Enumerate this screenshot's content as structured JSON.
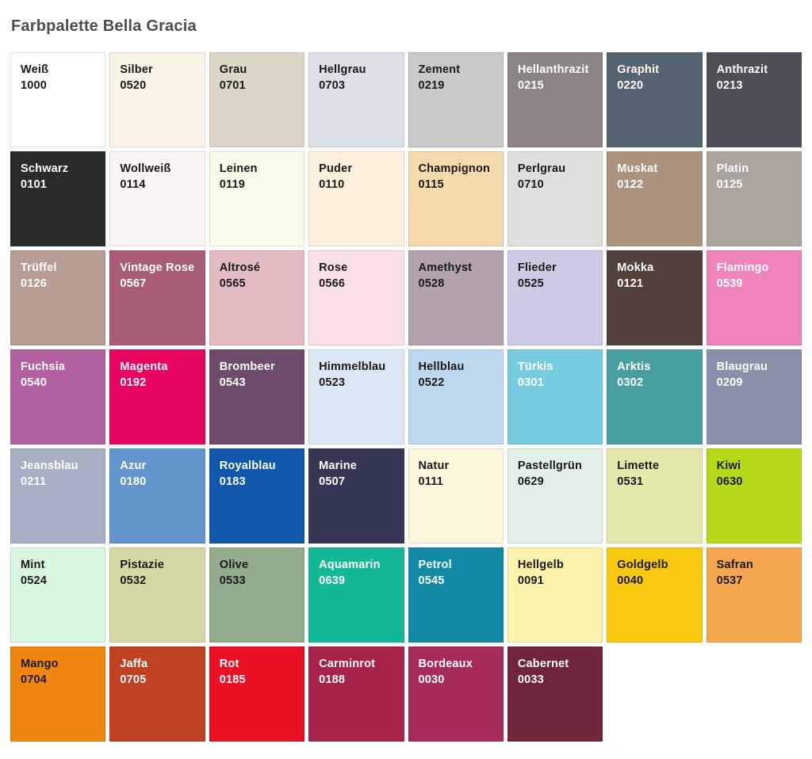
{
  "title": "Farbpalette Bella Gracia",
  "chart_data": {
    "type": "table",
    "title": "Farbpalette Bella Gracia",
    "columns": 8,
    "rows": 7,
    "legend_position": "none",
    "swatches": [
      {
        "name": "Weiß",
        "code": "1000",
        "color": "#ffffff",
        "text_color": "#1a1a1a"
      },
      {
        "name": "Silber",
        "code": "0520",
        "color": "#f8f3e5",
        "text_color": "#1a1a1a"
      },
      {
        "name": "Grau",
        "code": "0701",
        "color": "#dcd6c8",
        "text_color": "#1a1a1a"
      },
      {
        "name": "Hellgrau",
        "code": "0703",
        "color": "#dce1e8",
        "text_color": "#1a1a1a"
      },
      {
        "name": "Zement",
        "code": "0219",
        "color": "#c7cac6",
        "text_color": "#1a1a1a"
      },
      {
        "name": "Hellanthrazit",
        "code": "0215",
        "color": "#8b8386",
        "text_color": "#ffffff"
      },
      {
        "name": "Graphit",
        "code": "0220",
        "color": "#566370",
        "text_color": "#ffffff"
      },
      {
        "name": "Anthrazit",
        "code": "0213",
        "color": "#514d56",
        "text_color": "#ffffff"
      },
      {
        "name": "Schwarz",
        "code": "0101",
        "color": "#272d29",
        "text_color": "#ffffff"
      },
      {
        "name": "Wollweiß",
        "code": "0114",
        "color": "#faf5f2",
        "text_color": "#1a1a1a"
      },
      {
        "name": "Leinen",
        "code": "0119",
        "color": "#fafaeb",
        "text_color": "#1a1a1a"
      },
      {
        "name": "Puder",
        "code": "0110",
        "color": "#fdf0dc",
        "text_color": "#1a1a1a"
      },
      {
        "name": "Champignon",
        "code": "0115",
        "color": "#f3d9ab",
        "text_color": "#1a1a1a"
      },
      {
        "name": "Perlgrau",
        "code": "0710",
        "color": "#e0e0da",
        "text_color": "#1a1a1a"
      },
      {
        "name": "Muskat",
        "code": "0122",
        "color": "#ac937f",
        "text_color": "#ffffff"
      },
      {
        "name": "Platin",
        "code": "0125",
        "color": "#aaa49d",
        "text_color": "#ffffff"
      },
      {
        "name": "Trüffel",
        "code": "0126",
        "color": "#b69c93",
        "text_color": "#ffffff"
      },
      {
        "name": "Vintage Rose",
        "code": "0567",
        "color": "#a95c75",
        "text_color": "#ffffff"
      },
      {
        "name": "Altrosé",
        "code": "0565",
        "color": "#e2bcc1",
        "text_color": "#1a1a1a"
      },
      {
        "name": "Rose",
        "code": "0566",
        "color": "#fbe0e9",
        "text_color": "#1a1a1a"
      },
      {
        "name": "Amethyst",
        "code": "0528",
        "color": "#b2a2ae",
        "text_color": "#1a1a1a"
      },
      {
        "name": "Flieder",
        "code": "0525",
        "color": "#cfc9e4",
        "text_color": "#1a1a1a"
      },
      {
        "name": "Mokka",
        "code": "0121",
        "color": "#52403b",
        "text_color": "#ffffff"
      },
      {
        "name": "Flamingo",
        "code": "0539",
        "color": "#ef84ba",
        "text_color": "#ffffff"
      },
      {
        "name": "Fuchsia",
        "code": "0540",
        "color": "#b360a3",
        "text_color": "#ffffff"
      },
      {
        "name": "Magenta",
        "code": "0192",
        "color": "#e80560",
        "text_color": "#ffffff"
      },
      {
        "name": "Brombeer",
        "code": "0543",
        "color": "#6e4b6b",
        "text_color": "#ffffff"
      },
      {
        "name": "Himmelblau",
        "code": "0523",
        "color": "#dbe7f5",
        "text_color": "#1a1a1a"
      },
      {
        "name": "Hellblau",
        "code": "0522",
        "color": "#bdd7ef",
        "text_color": "#1a1a1a"
      },
      {
        "name": "Türkis",
        "code": "0301",
        "color": "#77ccdf",
        "text_color": "#ffffff"
      },
      {
        "name": "Arktis",
        "code": "0302",
        "color": "#479fa0",
        "text_color": "#ffffff"
      },
      {
        "name": "Blaugrau",
        "code": "0209",
        "color": "#8a90a9",
        "text_color": "#ffffff"
      },
      {
        "name": "Jeansblau",
        "code": "0211",
        "color": "#a8afc5",
        "text_color": "#ffffff"
      },
      {
        "name": "Azur",
        "code": "0180",
        "color": "#6396cd",
        "text_color": "#ffffff"
      },
      {
        "name": "Royalblau",
        "code": "0183",
        "color": "#1158ac",
        "text_color": "#ffffff"
      },
      {
        "name": "Marine",
        "code": "0507",
        "color": "#343756",
        "text_color": "#ffffff"
      },
      {
        "name": "Natur",
        "code": "0111",
        "color": "#fdf8dc",
        "text_color": "#1a1a1a"
      },
      {
        "name": "Pastellgrün",
        "code": "0629",
        "color": "#e2f0e5",
        "text_color": "#1a1a1a"
      },
      {
        "name": "Limette",
        "code": "0531",
        "color": "#e4e8ab",
        "text_color": "#1a1a1a"
      },
      {
        "name": "Kiwi",
        "code": "0630",
        "color": "#b5d818",
        "text_color": "#1a1a1a"
      },
      {
        "name": "Mint",
        "code": "0524",
        "color": "#d8f7de",
        "text_color": "#1a1a1a"
      },
      {
        "name": "Pistazie",
        "code": "0532",
        "color": "#d5d8a4",
        "text_color": "#1a1a1a"
      },
      {
        "name": "Olive",
        "code": "0533",
        "color": "#93ac8d",
        "text_color": "#1a1a1a"
      },
      {
        "name": "Aquamarin",
        "code": "0639",
        "color": "#15b896",
        "text_color": "#ffffff"
      },
      {
        "name": "Petrol",
        "code": "0545",
        "color": "#128aa6",
        "text_color": "#ffffff"
      },
      {
        "name": "Hellgelb",
        "code": "0091",
        "color": "#fbf3ab",
        "text_color": "#1a1a1a"
      },
      {
        "name": "Goldgelb",
        "code": "0040",
        "color": "#f8c90f",
        "text_color": "#1a1a1a"
      },
      {
        "name": "Safran",
        "code": "0537",
        "color": "#f4a74e",
        "text_color": "#1a1a1a"
      },
      {
        "name": "Mango",
        "code": "0704",
        "color": "#f08510",
        "text_color": "#1a1a1a"
      },
      {
        "name": "Jaffa",
        "code": "0705",
        "color": "#c04121",
        "text_color": "#ffffff"
      },
      {
        "name": "Rot",
        "code": "0185",
        "color": "#e91123",
        "text_color": "#ffffff"
      },
      {
        "name": "Carminrot",
        "code": "0188",
        "color": "#a72347",
        "text_color": "#ffffff"
      },
      {
        "name": "Bordeaux",
        "code": "0030",
        "color": "#a72b5a",
        "text_color": "#ffffff"
      },
      {
        "name": "Cabernet",
        "code": "0033",
        "color": "#6f2638",
        "text_color": "#ffffff"
      }
    ]
  }
}
